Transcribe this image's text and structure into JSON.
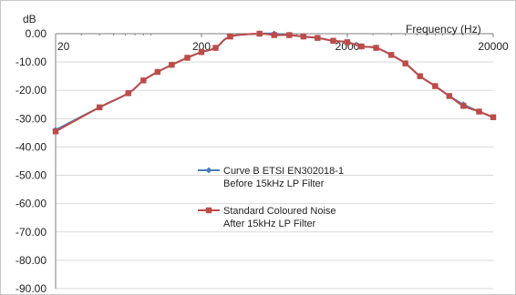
{
  "chart_data": {
    "type": "line",
    "ylabel": "dB",
    "xlabel": "Frequency (Hz)",
    "x_scale": "log",
    "xlim": [
      20,
      20000
    ],
    "ylim": [
      -90,
      0
    ],
    "y_ticks": [
      "0.00",
      "-10.00",
      "-20.00",
      "-30.00",
      "-40.00",
      "-50.00",
      "-60.00",
      "-70.00",
      "-80.00",
      "-90.00"
    ],
    "y_tick_values": [
      0,
      -10,
      -20,
      -30,
      -40,
      -50,
      -60,
      -70,
      -80,
      -90
    ],
    "x_ticks": [
      "20",
      "200",
      "2000",
      "20000"
    ],
    "x_tick_values": [
      20,
      200,
      2000,
      20000
    ],
    "grid": "horizontal",
    "legend_position": "center-right",
    "series": [
      {
        "name": "Curve B ETSI EN302018-1 Before 15kHz LP Filter",
        "legend_lines": [
          "Curve B ETSI EN302018-1",
          "Before 15kHz LP Filter"
        ],
        "color": "#4a7ebb",
        "marker": "diamond",
        "x": [
          20,
          40,
          63,
          80,
          100,
          125,
          160,
          200,
          250,
          315,
          500,
          630,
          800,
          1000,
          1250,
          1600,
          2000,
          2500,
          3150,
          4000,
          5000,
          6300,
          8000,
          10000,
          12500,
          16000,
          20000
        ],
        "values": [
          -34,
          -26,
          -21,
          -16.5,
          -13.5,
          -11,
          -8.5,
          -6.5,
          -5,
          -1,
          0,
          0,
          -0.5,
          -1,
          -1.5,
          -2.5,
          -3,
          -4.5,
          -5,
          -7.5,
          -10.5,
          -15,
          -18.5,
          -22,
          -25,
          -27.5,
          -29.5
        ],
        "y": [
          -34,
          -26,
          -21,
          -16.5,
          -13.5,
          -11,
          -8.5,
          -6.5,
          -5,
          -1,
          0,
          0,
          -0.5,
          -1,
          -1.5,
          -2.5,
          -3,
          -4.5,
          -5,
          -7.5,
          -10.5,
          -15,
          -18.5,
          -22,
          -25,
          -27.5,
          -29.5
        ]
      },
      {
        "name": "Standard Coloured Noise After 15kHz LP Filter",
        "legend_lines": [
          "Standard Coloured Noise",
          "After 15kHz LP Filter"
        ],
        "color": "#be4b48",
        "marker": "square",
        "x": [
          20,
          40,
          63,
          80,
          100,
          125,
          160,
          200,
          250,
          315,
          500,
          630,
          800,
          1000,
          1250,
          1600,
          2000,
          2500,
          3150,
          4000,
          5000,
          6300,
          8000,
          10000,
          12500,
          16000,
          20000
        ],
        "values": [
          -34.5,
          -26,
          -21,
          -16.5,
          -13.5,
          -11,
          -8.5,
          -6.5,
          -5,
          -1,
          0,
          -0.5,
          -0.5,
          -1,
          -1.5,
          -2.5,
          -3,
          -4.5,
          -5,
          -7.5,
          -10.5,
          -15,
          -18.5,
          -22,
          -25.5,
          -27.5,
          -29.5
        ],
        "y": [
          -34.5,
          -26,
          -21,
          -16.5,
          -13.5,
          -11,
          -8.5,
          -6.5,
          -5,
          -1,
          0,
          -0.5,
          -0.5,
          -1,
          -1.5,
          -2.5,
          -3,
          -4.5,
          -5,
          -7.5,
          -10.5,
          -15,
          -18.5,
          -22,
          -25.5,
          -27.5,
          -29.5
        ]
      }
    ]
  }
}
